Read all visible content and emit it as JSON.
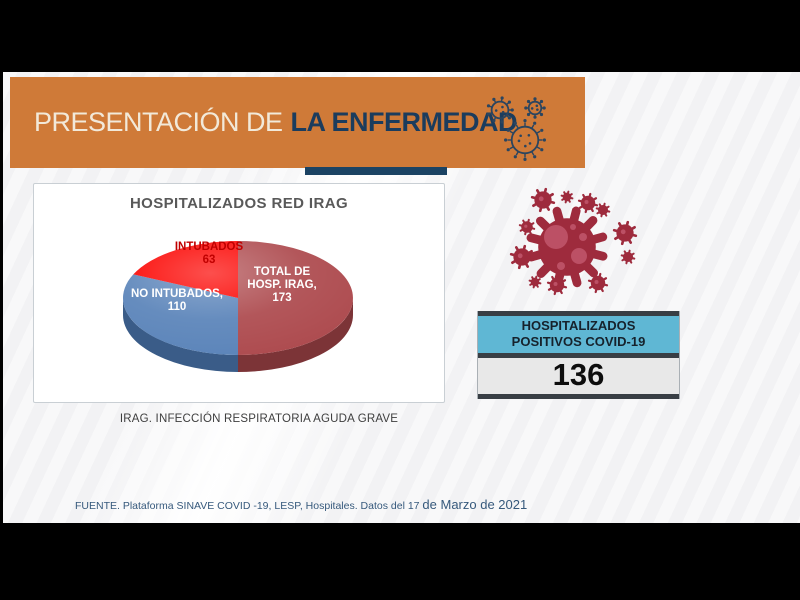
{
  "header": {
    "title_prefix": "PRESENTACIÓN DE",
    "title_emphasis": "LA ENFERMEDAD"
  },
  "chart": {
    "panel_title": "HOSPITALIZADOS RED IRAG",
    "caption": "IRAG. INFECCIÓN RESPIRATORIA AGUDA GRAVE"
  },
  "chart_data": {
    "type": "pie",
    "style": "3d",
    "title": "HOSPITALIZADOS RED IRAG",
    "start": "top",
    "direction": "clockwise",
    "slices": [
      {
        "label": "TOTAL DE HOSP. IRAG",
        "value": 173,
        "color": "#AE4C50",
        "side_color": "#7C3437",
        "label_lines": [
          "TOTAL DE",
          "HOSP. IRAG,",
          "173"
        ]
      },
      {
        "label": "NO INTUBADOS",
        "value": 110,
        "color": "#5C85BA",
        "side_color": "#3A5C88",
        "label_lines": [
          "NO INTUBADOS,",
          "110"
        ]
      },
      {
        "label": "INTUBADOS",
        "value": 63,
        "color": "#FB0300",
        "side_color": "#A50000",
        "label_lines": [
          "INTUBADOS",
          "63"
        ]
      }
    ]
  },
  "stat_box": {
    "title_line1": "HOSPITALIZADOS",
    "title_line2": "POSITIVOS COVID-19",
    "value": "136"
  },
  "footer": {
    "source": "FUENTE. Plataforma SINAVE COVID -19, LESP, Hospitales. Datos del 17 ",
    "date": "de Marzo de 2021"
  },
  "icons": {
    "header_icons": "virus-outline-icon",
    "illustration": "coronavirus-icon"
  },
  "colors": {
    "banner_orange": "#CF7A38",
    "navy": "#1B4363",
    "banner_prefix_text": "#F2E9D9",
    "cyan_header": "#5FB7D4",
    "virus_red": "#9E2B3D",
    "virus_inner": "#BC5065",
    "label_red": "#C00000",
    "footer_blue": "#36597C"
  }
}
